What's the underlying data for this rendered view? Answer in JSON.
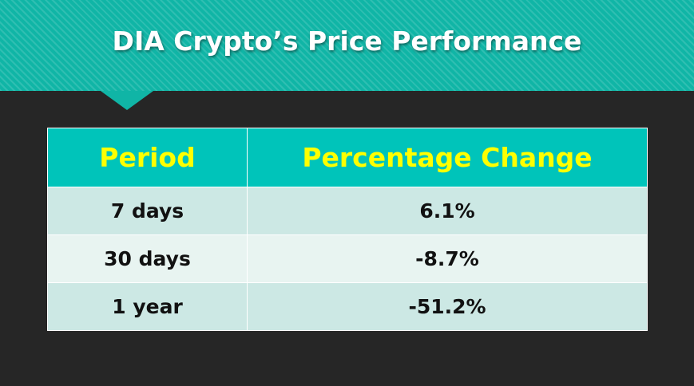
{
  "title": "DIA Crypto’s Price Performance",
  "colors": {
    "banner": "#10b5a6",
    "header_bg": "#00c4ba",
    "header_text": "#ffff00",
    "row_odd": "#cce8e4",
    "row_even": "#e8f4f1",
    "background": "#262626"
  },
  "table": {
    "headers": [
      "Period",
      "Percentage Change"
    ],
    "rows": [
      {
        "period": "7 days",
        "change": "6.1%"
      },
      {
        "period": "30 days",
        "change": "-8.7%"
      },
      {
        "period": "1 year",
        "change": "-51.2%"
      }
    ]
  }
}
